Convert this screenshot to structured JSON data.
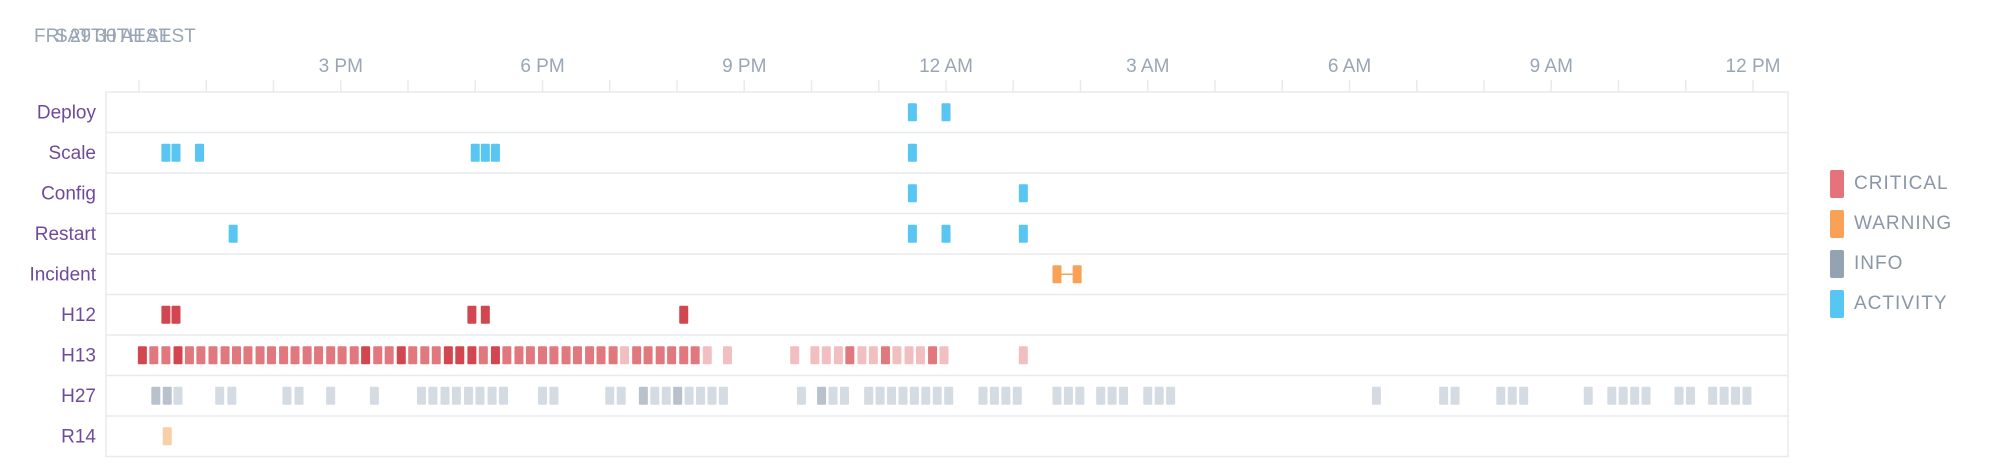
{
  "header": {
    "date_labels": [
      {
        "text": "FRI 29TH AEST",
        "hour": 0
      },
      {
        "text": "SAT 30TH AEST",
        "hour": 12
      }
    ]
  },
  "axis": {
    "start_hour": 12.0,
    "end_hour": 36.0,
    "ticks": [
      {
        "hour": 15,
        "label": "3 PM"
      },
      {
        "hour": 18,
        "label": "6 PM"
      },
      {
        "hour": 21,
        "label": "9 PM"
      },
      {
        "hour": 24,
        "label": "12 AM"
      },
      {
        "hour": 27,
        "label": "3 AM"
      },
      {
        "hour": 30,
        "label": "6 AM"
      },
      {
        "hour": 33,
        "label": "9 AM"
      },
      {
        "hour": 36,
        "label": "12 PM"
      }
    ]
  },
  "rows": [
    {
      "label": "Deploy"
    },
    {
      "label": "Scale"
    },
    {
      "label": "Config"
    },
    {
      "label": "Restart"
    },
    {
      "label": "Incident"
    },
    {
      "label": "H12"
    },
    {
      "label": "H13"
    },
    {
      "label": "H27"
    },
    {
      "label": "R14"
    }
  ],
  "legend": [
    {
      "label": "CRITICAL",
      "color": "#e5737c"
    },
    {
      "label": "WARNING",
      "color": "#f9a157"
    },
    {
      "label": "INFO",
      "color": "#93a3b4"
    },
    {
      "label": "ACTIVITY",
      "color": "#57c6f3"
    }
  ],
  "colors": {
    "activity": "#57c6f3",
    "critical_dark": "#d2474f",
    "critical_mid": "#e1787e",
    "critical_light": "#f2bfc1",
    "warning": "#f9a157",
    "warning_light": "#f9cfa6",
    "info": "#d5dbe2",
    "info_dark": "#b9c2cc",
    "grid": "#e8eaee",
    "row_label": "#6f4a9b",
    "axis_label": "#9aa6b6"
  },
  "chart_data": {
    "type": "timeline",
    "x_unit": "hour (12 = Fri 29th 12 PM, 24 = Sat 30th 12 AM)",
    "xlim": [
      12.0,
      36.0
    ],
    "events": {
      "Deploy": [
        [
          23.5,
          "activity"
        ],
        [
          24.0,
          "activity"
        ]
      ],
      "Scale": [
        [
          12.4,
          "activity"
        ],
        [
          12.55,
          "activity"
        ],
        [
          12.9,
          "activity"
        ],
        [
          17.0,
          "activity"
        ],
        [
          17.15,
          "activity"
        ],
        [
          17.3,
          "activity"
        ],
        [
          23.5,
          "activity"
        ]
      ],
      "Config": [
        [
          23.5,
          "activity"
        ],
        [
          25.15,
          "activity"
        ]
      ],
      "Restart": [
        [
          13.4,
          "activity"
        ],
        [
          23.5,
          "activity"
        ],
        [
          24.0,
          "activity"
        ],
        [
          25.15,
          "activity"
        ]
      ],
      "Incident": [
        [
          25.65,
          "warning"
        ],
        [
          25.95,
          "warning"
        ]
      ],
      "H12": [
        [
          12.4,
          "critical_dark"
        ],
        [
          12.55,
          "critical_dark"
        ],
        [
          16.95,
          "critical_dark"
        ],
        [
          17.15,
          "critical_dark"
        ],
        [
          20.1,
          "critical_dark"
        ]
      ],
      "H13": [
        [
          12.05,
          "critical_dark"
        ],
        [
          12.22,
          "critical_mid"
        ],
        [
          12.4,
          "critical_mid"
        ],
        [
          12.58,
          "critical_dark"
        ],
        [
          12.75,
          "critical_mid"
        ],
        [
          12.92,
          "critical_mid"
        ],
        [
          13.1,
          "critical_mid"
        ],
        [
          13.28,
          "critical_mid"
        ],
        [
          13.45,
          "critical_mid"
        ],
        [
          13.62,
          "critical_mid"
        ],
        [
          13.8,
          "critical_mid"
        ],
        [
          13.97,
          "critical_mid"
        ],
        [
          14.15,
          "critical_mid"
        ],
        [
          14.32,
          "critical_mid"
        ],
        [
          14.5,
          "critical_mid"
        ],
        [
          14.67,
          "critical_mid"
        ],
        [
          14.85,
          "critical_mid"
        ],
        [
          15.02,
          "critical_mid"
        ],
        [
          15.2,
          "critical_mid"
        ],
        [
          15.37,
          "critical_dark"
        ],
        [
          15.55,
          "critical_mid"
        ],
        [
          15.72,
          "critical_mid"
        ],
        [
          15.9,
          "critical_dark"
        ],
        [
          16.07,
          "critical_mid"
        ],
        [
          16.25,
          "critical_mid"
        ],
        [
          16.42,
          "critical_mid"
        ],
        [
          16.6,
          "critical_dark"
        ],
        [
          16.77,
          "critical_dark"
        ],
        [
          16.95,
          "critical_dark"
        ],
        [
          17.12,
          "critical_mid"
        ],
        [
          17.3,
          "critical_dark"
        ],
        [
          17.47,
          "critical_mid"
        ],
        [
          17.65,
          "critical_mid"
        ],
        [
          17.82,
          "critical_mid"
        ],
        [
          18.0,
          "critical_mid"
        ],
        [
          18.17,
          "critical_mid"
        ],
        [
          18.35,
          "critical_mid"
        ],
        [
          18.52,
          "critical_mid"
        ],
        [
          18.7,
          "critical_mid"
        ],
        [
          18.87,
          "critical_mid"
        ],
        [
          19.05,
          "critical_mid"
        ],
        [
          19.22,
          "critical_light"
        ],
        [
          19.4,
          "critical_mid"
        ],
        [
          19.57,
          "critical_mid"
        ],
        [
          19.75,
          "critical_mid"
        ],
        [
          19.92,
          "critical_mid"
        ],
        [
          20.1,
          "critical_mid"
        ],
        [
          20.27,
          "critical_mid"
        ],
        [
          20.45,
          "critical_light"
        ],
        [
          20.75,
          "critical_light"
        ],
        [
          21.75,
          "critical_light"
        ],
        [
          22.05,
          "critical_light"
        ],
        [
          22.22,
          "critical_light"
        ],
        [
          22.4,
          "critical_light"
        ],
        [
          22.57,
          "critical_mid"
        ],
        [
          22.75,
          "critical_light"
        ],
        [
          22.92,
          "critical_light"
        ],
        [
          23.1,
          "critical_mid"
        ],
        [
          23.27,
          "critical_light"
        ],
        [
          23.45,
          "critical_light"
        ],
        [
          23.62,
          "critical_light"
        ],
        [
          23.8,
          "critical_mid"
        ],
        [
          23.97,
          "critical_light"
        ],
        [
          25.15,
          "critical_light"
        ]
      ],
      "H27": [
        [
          12.25,
          "info_dark"
        ],
        [
          12.42,
          "info_dark"
        ],
        [
          12.58,
          "info"
        ],
        [
          13.2,
          "info"
        ],
        [
          13.38,
          "info"
        ],
        [
          14.2,
          "info"
        ],
        [
          14.38,
          "info"
        ],
        [
          14.85,
          "info"
        ],
        [
          15.5,
          "info"
        ],
        [
          16.2,
          "info"
        ],
        [
          16.37,
          "info"
        ],
        [
          16.55,
          "info"
        ],
        [
          16.72,
          "info"
        ],
        [
          16.9,
          "info"
        ],
        [
          17.07,
          "info"
        ],
        [
          17.25,
          "info"
        ],
        [
          17.42,
          "info"
        ],
        [
          18.0,
          "info"
        ],
        [
          18.17,
          "info"
        ],
        [
          19.0,
          "info"
        ],
        [
          19.17,
          "info"
        ],
        [
          19.5,
          "info_dark"
        ],
        [
          19.67,
          "info"
        ],
        [
          19.84,
          "info"
        ],
        [
          20.01,
          "info_dark"
        ],
        [
          20.18,
          "info"
        ],
        [
          20.35,
          "info"
        ],
        [
          20.52,
          "info"
        ],
        [
          20.69,
          "info"
        ],
        [
          21.85,
          "info"
        ],
        [
          22.15,
          "info_dark"
        ],
        [
          22.32,
          "info"
        ],
        [
          22.49,
          "info"
        ],
        [
          22.85,
          "info"
        ],
        [
          23.02,
          "info"
        ],
        [
          23.19,
          "info"
        ],
        [
          23.36,
          "info"
        ],
        [
          23.53,
          "info"
        ],
        [
          23.7,
          "info"
        ],
        [
          23.87,
          "info"
        ],
        [
          24.04,
          "info"
        ],
        [
          24.55,
          "info"
        ],
        [
          24.72,
          "info"
        ],
        [
          24.89,
          "info"
        ],
        [
          25.06,
          "info"
        ],
        [
          25.65,
          "info"
        ],
        [
          25.82,
          "info"
        ],
        [
          25.99,
          "info"
        ],
        [
          26.3,
          "info"
        ],
        [
          26.47,
          "info"
        ],
        [
          26.64,
          "info"
        ],
        [
          27.0,
          "info"
        ],
        [
          27.17,
          "info"
        ],
        [
          27.34,
          "info"
        ],
        [
          30.4,
          "info"
        ],
        [
          31.4,
          "info"
        ],
        [
          31.57,
          "info"
        ],
        [
          32.25,
          "info"
        ],
        [
          32.42,
          "info"
        ],
        [
          32.59,
          "info"
        ],
        [
          33.55,
          "info"
        ],
        [
          33.9,
          "info"
        ],
        [
          34.07,
          "info"
        ],
        [
          34.24,
          "info"
        ],
        [
          34.41,
          "info"
        ],
        [
          34.9,
          "info"
        ],
        [
          35.07,
          "info"
        ],
        [
          35.4,
          "info"
        ],
        [
          35.57,
          "info"
        ],
        [
          35.74,
          "info"
        ],
        [
          35.91,
          "info"
        ]
      ],
      "R14": [
        [
          12.42,
          "warning_light"
        ]
      ]
    }
  }
}
